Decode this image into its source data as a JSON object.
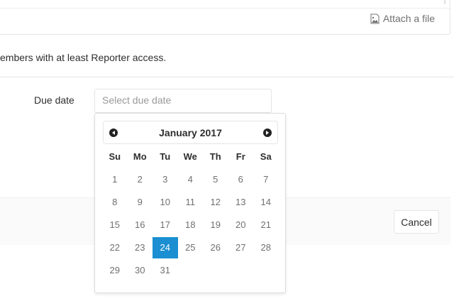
{
  "editor": {
    "attach_label": "Attach a file",
    "attach_icon": "image-file-icon",
    "resize_icon": "resize-handle-icon"
  },
  "hint": "embers with at least Reporter access.",
  "due_date": {
    "label": "Due date",
    "placeholder": "Select due date"
  },
  "cancel_label": "Cancel",
  "calendar": {
    "title": "January 2017",
    "prev_icon": "chevron-left-circle-icon",
    "next_icon": "chevron-right-circle-icon",
    "weekdays": [
      "Su",
      "Mo",
      "Tu",
      "We",
      "Th",
      "Fr",
      "Sa"
    ],
    "weeks": [
      [
        "1",
        "2",
        "3",
        "4",
        "5",
        "6",
        "7"
      ],
      [
        "8",
        "9",
        "10",
        "11",
        "12",
        "13",
        "14"
      ],
      [
        "15",
        "16",
        "17",
        "18",
        "19",
        "20",
        "21"
      ],
      [
        "22",
        "23",
        "24",
        "25",
        "26",
        "27",
        "28"
      ],
      [
        "29",
        "30",
        "31",
        "",
        "",
        "",
        ""
      ]
    ],
    "selected": "24",
    "selected_color": "#1b8fd1"
  }
}
